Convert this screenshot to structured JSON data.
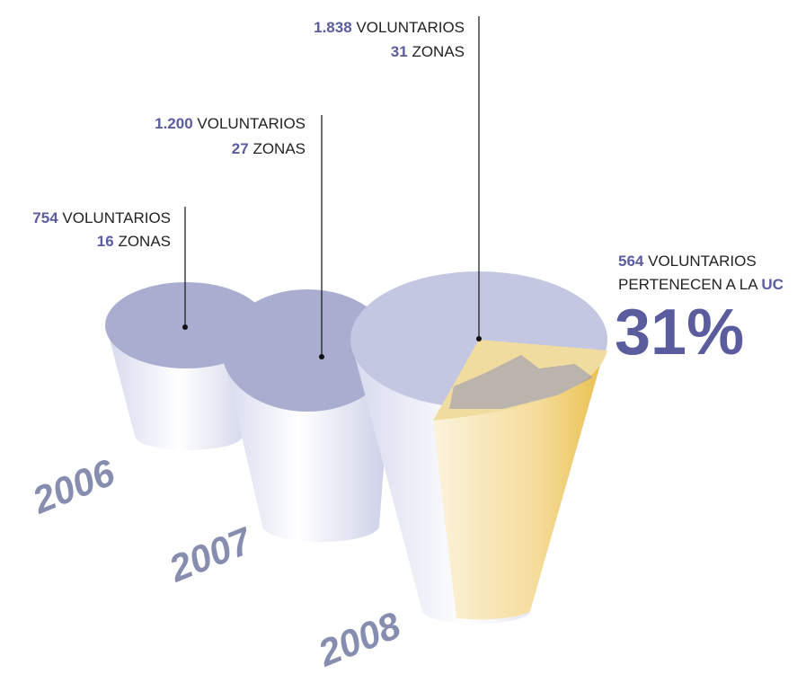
{
  "years": [
    {
      "year": "2006",
      "volunteers": "754",
      "volunteers_label": "VOLUNTARIOS",
      "zones": "16",
      "zones_label": "ZONAS"
    },
    {
      "year": "2007",
      "volunteers": "1.200",
      "volunteers_label": "VOLUNTARIOS",
      "zones": "27",
      "zones_label": "ZONAS"
    },
    {
      "year": "2008",
      "volunteers": "1.838",
      "volunteers_label": "VOLUNTARIOS",
      "zones": "31",
      "zones_label": "ZONAS"
    }
  ],
  "uc": {
    "volunteers": "564",
    "volunteers_label": "VOLUNTARIOS",
    "belong_label": "PERTENECEN A LA",
    "institution": "UC",
    "share": "31%"
  }
}
